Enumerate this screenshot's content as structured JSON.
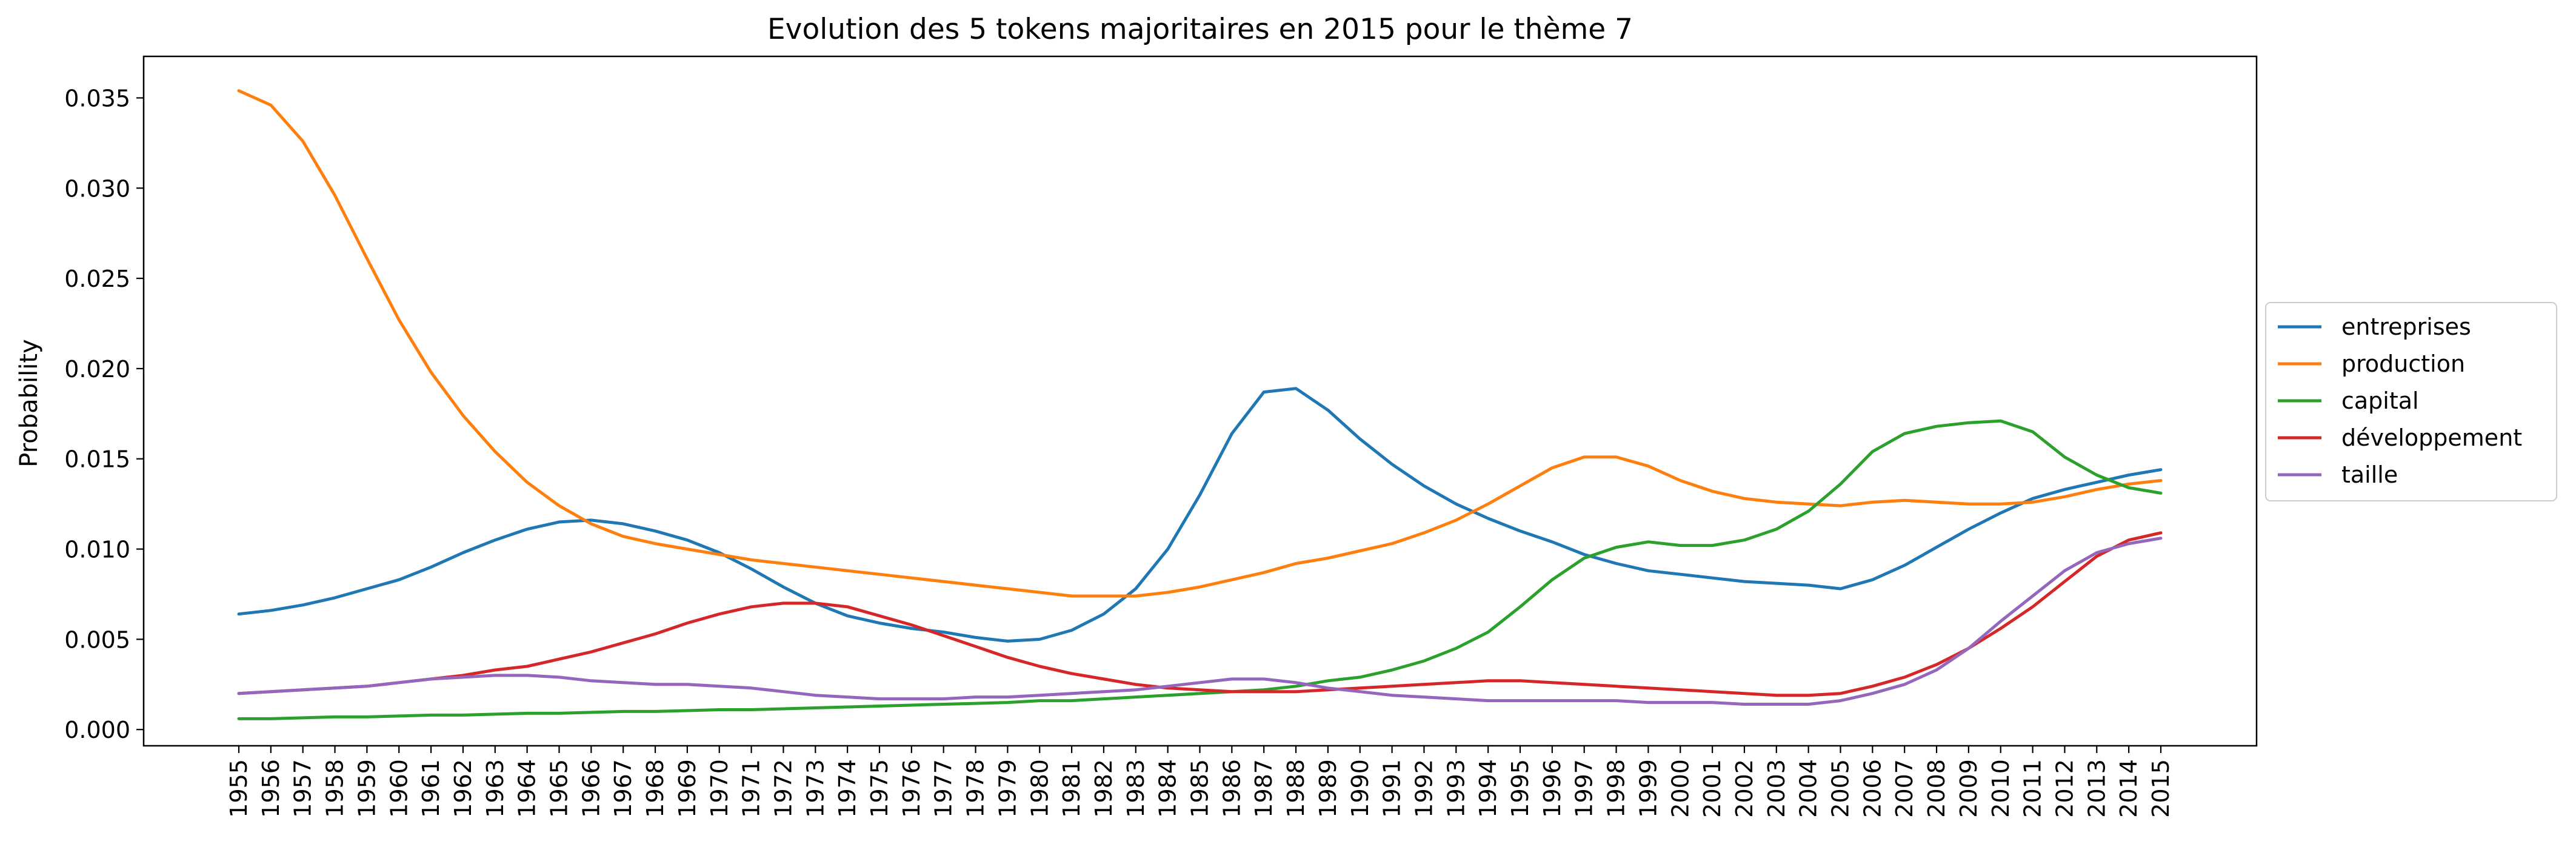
{
  "chart_data": {
    "type": "line",
    "title": "Evolution des 5 tokens majoritaires en 2015 pour le thème 7",
    "xlabel": "",
    "ylabel": "Probability",
    "x": [
      1955,
      1956,
      1957,
      1958,
      1959,
      1960,
      1961,
      1962,
      1963,
      1964,
      1965,
      1966,
      1967,
      1968,
      1969,
      1970,
      1971,
      1972,
      1973,
      1974,
      1975,
      1976,
      1977,
      1978,
      1979,
      1980,
      1981,
      1982,
      1983,
      1984,
      1985,
      1986,
      1987,
      1988,
      1989,
      1990,
      1991,
      1992,
      1993,
      1994,
      1995,
      1996,
      1997,
      1998,
      1999,
      2000,
      2001,
      2002,
      2003,
      2004,
      2005,
      2006,
      2007,
      2008,
      2009,
      2010,
      2011,
      2012,
      2013,
      2014,
      2015
    ],
    "ylim": [
      -0.0009,
      0.0373
    ],
    "yticks": [
      0.0,
      0.005,
      0.01,
      0.015,
      0.02,
      0.025,
      0.03,
      0.035
    ],
    "ytick_labels": [
      "0.000",
      "0.005",
      "0.010",
      "0.015",
      "0.020",
      "0.025",
      "0.030",
      "0.035"
    ],
    "grid": false,
    "legend_position": "center-right, outside plot",
    "series": [
      {
        "name": "entreprises",
        "color": "#1f77b4",
        "values": [
          0.0064,
          0.0066,
          0.0069,
          0.0073,
          0.0078,
          0.0083,
          0.009,
          0.0098,
          0.0105,
          0.0111,
          0.0115,
          0.0116,
          0.0114,
          0.011,
          0.0105,
          0.0098,
          0.0089,
          0.0079,
          0.007,
          0.0063,
          0.0059,
          0.0056,
          0.0054,
          0.0051,
          0.0049,
          0.005,
          0.0055,
          0.0064,
          0.0078,
          0.01,
          0.013,
          0.0164,
          0.0187,
          0.0189,
          0.0177,
          0.0161,
          0.0147,
          0.0135,
          0.0125,
          0.0117,
          0.011,
          0.0104,
          0.0097,
          0.0092,
          0.0088,
          0.0086,
          0.0084,
          0.0082,
          0.0081,
          0.008,
          0.0078,
          0.0083,
          0.0091,
          0.0101,
          0.0111,
          0.012,
          0.0128,
          0.0133,
          0.0137,
          0.0141,
          0.0144
        ]
      },
      {
        "name": "production",
        "color": "#ff7f0e",
        "values": [
          0.0354,
          0.0346,
          0.0326,
          0.0296,
          0.0261,
          0.0227,
          0.0198,
          0.0174,
          0.0154,
          0.0137,
          0.0124,
          0.0114,
          0.0107,
          0.0103,
          0.01,
          0.0097,
          0.0094,
          0.0092,
          0.009,
          0.0088,
          0.0086,
          0.0084,
          0.0082,
          0.008,
          0.0078,
          0.0076,
          0.0074,
          0.0074,
          0.0074,
          0.0076,
          0.0079,
          0.0083,
          0.0087,
          0.0092,
          0.0095,
          0.0099,
          0.0103,
          0.0109,
          0.0116,
          0.0125,
          0.0135,
          0.0145,
          0.0151,
          0.0151,
          0.0146,
          0.0138,
          0.0132,
          0.0128,
          0.0126,
          0.0125,
          0.0124,
          0.0126,
          0.0127,
          0.0126,
          0.0125,
          0.0125,
          0.0126,
          0.0129,
          0.0133,
          0.0136,
          0.0138
        ]
      },
      {
        "name": "capital",
        "color": "#2ca02c",
        "values": [
          0.0006,
          0.0006,
          0.00065,
          0.0007,
          0.0007,
          0.00075,
          0.0008,
          0.0008,
          0.00085,
          0.0009,
          0.0009,
          0.00095,
          0.001,
          0.001,
          0.00105,
          0.0011,
          0.0011,
          0.00115,
          0.0012,
          0.00125,
          0.0013,
          0.00135,
          0.0014,
          0.00145,
          0.0015,
          0.0016,
          0.0016,
          0.0017,
          0.0018,
          0.0019,
          0.002,
          0.0021,
          0.0022,
          0.0024,
          0.0027,
          0.0029,
          0.0033,
          0.0038,
          0.0045,
          0.0054,
          0.0068,
          0.0083,
          0.0095,
          0.0101,
          0.0104,
          0.0102,
          0.0102,
          0.0105,
          0.0111,
          0.0121,
          0.0136,
          0.0154,
          0.0164,
          0.0168,
          0.017,
          0.0171,
          0.0165,
          0.0151,
          0.0141,
          0.0134,
          0.0131
        ]
      },
      {
        "name": "développement",
        "color": "#d62728",
        "values": [
          0.002,
          0.0021,
          0.0022,
          0.0023,
          0.0024,
          0.0026,
          0.0028,
          0.003,
          0.0033,
          0.0035,
          0.0039,
          0.0043,
          0.0048,
          0.0053,
          0.0059,
          0.0064,
          0.0068,
          0.007,
          0.007,
          0.0068,
          0.0063,
          0.0058,
          0.0052,
          0.0046,
          0.004,
          0.0035,
          0.0031,
          0.0028,
          0.0025,
          0.0023,
          0.0022,
          0.0021,
          0.0021,
          0.0021,
          0.0022,
          0.0023,
          0.0024,
          0.0025,
          0.0026,
          0.0027,
          0.0027,
          0.0026,
          0.0025,
          0.0024,
          0.0023,
          0.0022,
          0.0021,
          0.002,
          0.0019,
          0.0019,
          0.002,
          0.0024,
          0.0029,
          0.0036,
          0.0045,
          0.0056,
          0.0068,
          0.0082,
          0.0096,
          0.0105,
          0.0109
        ]
      },
      {
        "name": "taille",
        "color": "#9467bd",
        "values": [
          0.002,
          0.0021,
          0.0022,
          0.0023,
          0.0024,
          0.0026,
          0.0028,
          0.0029,
          0.003,
          0.003,
          0.0029,
          0.0027,
          0.0026,
          0.0025,
          0.0025,
          0.0024,
          0.0023,
          0.0021,
          0.0019,
          0.0018,
          0.0017,
          0.0017,
          0.0017,
          0.0018,
          0.0018,
          0.0019,
          0.002,
          0.0021,
          0.0022,
          0.0024,
          0.0026,
          0.0028,
          0.0028,
          0.0026,
          0.0023,
          0.0021,
          0.0019,
          0.0018,
          0.0017,
          0.0016,
          0.0016,
          0.0016,
          0.0016,
          0.0016,
          0.0015,
          0.0015,
          0.0015,
          0.0014,
          0.0014,
          0.0014,
          0.0016,
          0.002,
          0.0025,
          0.0033,
          0.0045,
          0.006,
          0.0074,
          0.0088,
          0.0098,
          0.0103,
          0.0106
        ]
      }
    ]
  }
}
